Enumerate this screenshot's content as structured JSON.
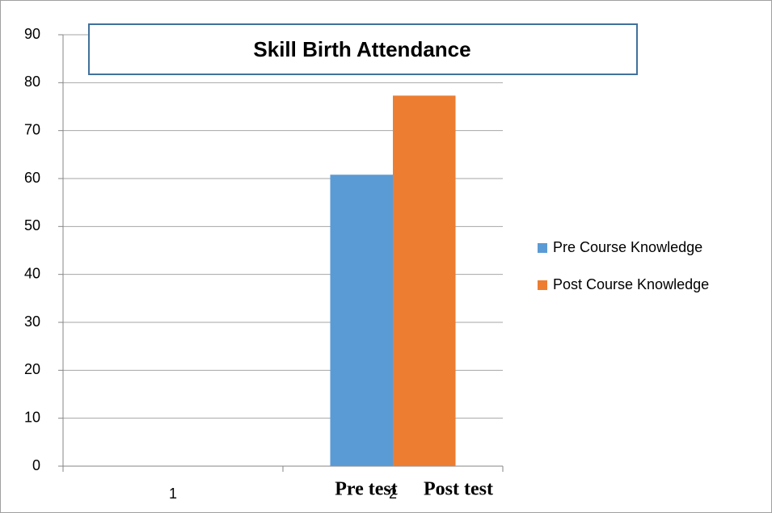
{
  "chart_data": {
    "type": "bar",
    "title": "Skill Birth Attendance",
    "categories": [
      "1",
      "2"
    ],
    "series": [
      {
        "name": "Pre Course Knowledge",
        "color": "#5b9bd5",
        "values": [
          null,
          60.8
        ]
      },
      {
        "name": "Post Course Knowledge",
        "color": "#ed7d31",
        "values": [
          null,
          77.3
        ]
      }
    ],
    "annotations": [
      "Pre test",
      "Post test"
    ],
    "ylim": [
      0,
      90
    ],
    "yticks": [
      0,
      10,
      20,
      30,
      40,
      50,
      60,
      70,
      80,
      90
    ],
    "grid": true,
    "legend": "right"
  }
}
